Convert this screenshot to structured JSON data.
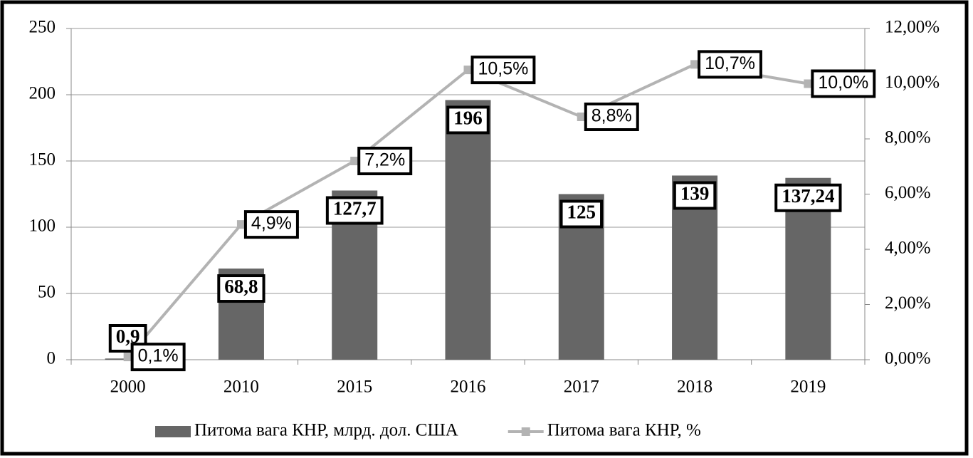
{
  "chart_data": {
    "type": "bar",
    "categories": [
      "2000",
      "2010",
      "2015",
      "2016",
      "2017",
      "2018",
      "2019"
    ],
    "series": [
      {
        "name": "Питома вага КНР, млрд. дол. США",
        "color": "#666666",
        "type": "bar",
        "values": [
          0.9,
          68.8,
          127.7,
          196,
          125,
          139,
          137.24
        ],
        "value_labels": [
          "0,9",
          "68,8",
          "127,7",
          "196",
          "125",
          "139",
          "137,24"
        ]
      },
      {
        "name": "Питома вага КНР, %",
        "color": "#b3b3b3",
        "type": "line",
        "axis": "y2",
        "values": [
          0.1,
          4.9,
          7.2,
          10.5,
          8.8,
          10.7,
          10.0
        ],
        "value_labels": [
          "0,1%",
          "4,9%",
          "7,2%",
          "10,5%",
          "8,8%",
          "10,7%",
          "10,0%"
        ]
      }
    ],
    "ylim": [
      0,
      250
    ],
    "yticks": [
      0,
      50,
      100,
      150,
      200,
      250
    ],
    "y2lim": [
      0,
      12
    ],
    "y2ticks": [
      {
        "value": 0,
        "label": "0,00%"
      },
      {
        "value": 2,
        "label": "2,00%"
      },
      {
        "value": 4,
        "label": "4,00%"
      },
      {
        "value": 6,
        "label": "6,00%"
      },
      {
        "value": 8,
        "label": "8,00%"
      },
      {
        "value": 10,
        "label": "10,00%"
      },
      {
        "value": 12,
        "label": "12,00%"
      }
    ],
    "grid": true,
    "legend": "bottom"
  }
}
